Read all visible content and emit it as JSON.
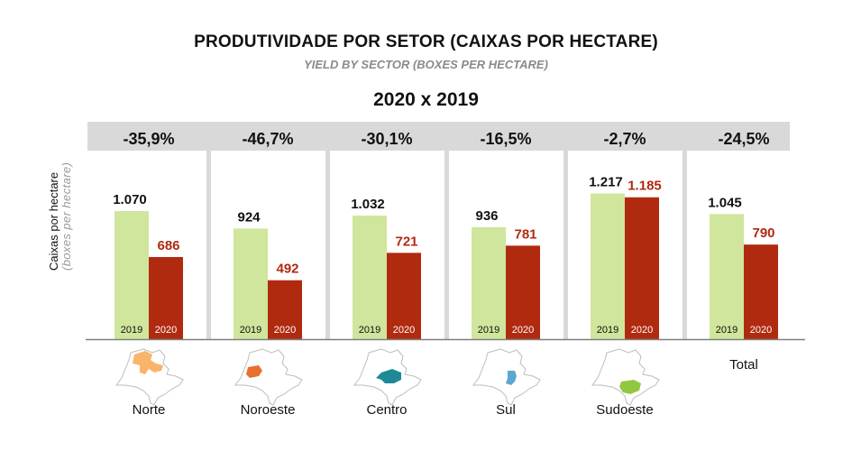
{
  "title": "PRODUTIVIDADE POR SETOR (CAIXAS POR HECTARE)",
  "subtitle": "YIELD BY SECTOR (BOXES PER HECTARE)",
  "comparison": "2020 x 2019",
  "colors": {
    "bar_2019": "#cfe69c",
    "bar_2020": "#b02a10",
    "label_2020": "#b02a10",
    "banner": "#d9d9d9",
    "separator": "#d9d9d9",
    "baseline": "#7f7f7f"
  },
  "chart_data": {
    "type": "bar",
    "title": "PRODUTIVIDADE POR SETOR (CAIXAS POR HECTARE)",
    "subtitle": "YIELD BY SECTOR (BOXES PER HECTARE)",
    "xlabel": "",
    "ylabel": "Caixas por hectare",
    "ylabel_en": "(boxes per hectare)",
    "ylim": [
      0,
      1300
    ],
    "grid": false,
    "categories": [
      "Norte",
      "Noroeste",
      "Centro",
      "Sul",
      "Sudoeste",
      "Total"
    ],
    "series": [
      {
        "name": "2019",
        "values": [
          1070,
          924,
          1032,
          936,
          1217,
          1045
        ],
        "labels": [
          "1.070",
          "924",
          "1.032",
          "936",
          "1.217",
          "1.045"
        ]
      },
      {
        "name": "2020",
        "values": [
          686,
          492,
          721,
          781,
          1185,
          790
        ],
        "labels": [
          "686",
          "492",
          "721",
          "781",
          "1.185",
          "790"
        ]
      }
    ],
    "changes": [
      "-35,9%",
      "-46,7%",
      "-30,1%",
      "-16,5%",
      "-2,7%",
      "-24,5%"
    ]
  },
  "sectors": [
    {
      "name": "Norte",
      "map_color": "#f9b46b",
      "map_icon": "sao-paulo-map-norte"
    },
    {
      "name": "Noroeste",
      "map_color": "#e8702f",
      "map_icon": "sao-paulo-map-noroeste"
    },
    {
      "name": "Centro",
      "map_color": "#1f8a96",
      "map_icon": "sao-paulo-map-centro"
    },
    {
      "name": "Sul",
      "map_color": "#5aa8cf",
      "map_icon": "sao-paulo-map-sul"
    },
    {
      "name": "Sudoeste",
      "map_color": "#92c742",
      "map_icon": "sao-paulo-map-sudoeste"
    },
    {
      "name": "Total"
    }
  ]
}
